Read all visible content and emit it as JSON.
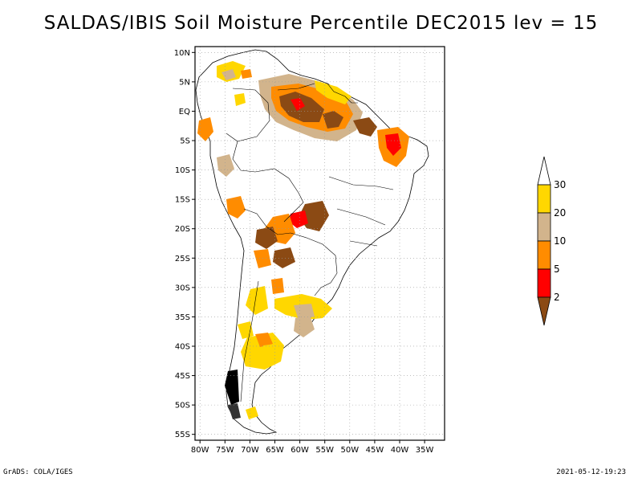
{
  "title": "SALDAS/IBIS Soil Moisture Percentile DEC2015 lev = 15",
  "map": {
    "region": "South America",
    "lat_ticks": [
      "10N",
      "5N",
      "EQ",
      "5S",
      "10S",
      "15S",
      "20S",
      "25S",
      "30S",
      "35S",
      "40S",
      "45S",
      "50S",
      "55S"
    ],
    "lon_ticks": [
      "80W",
      "75W",
      "70W",
      "65W",
      "60W",
      "55W",
      "50W",
      "45W",
      "40W",
      "35W"
    ],
    "lat_range": [
      -56,
      11
    ],
    "lon_range": [
      -81,
      -31
    ]
  },
  "legend": {
    "bins": [
      {
        "label": "2",
        "color": "#8b4a14"
      },
      {
        "label": "5",
        "color": "#ff0000"
      },
      {
        "label": "10",
        "color": "#ff8c00"
      },
      {
        "label": "20",
        "color": "#d2b48c"
      },
      {
        "label": "30",
        "color": "#ffd700"
      },
      {
        "label": "",
        "color": "#ffffff"
      }
    ]
  },
  "footer": {
    "credit": "GrADS: COLA/IGES",
    "timestamp": "2021-05-12-19:23"
  }
}
